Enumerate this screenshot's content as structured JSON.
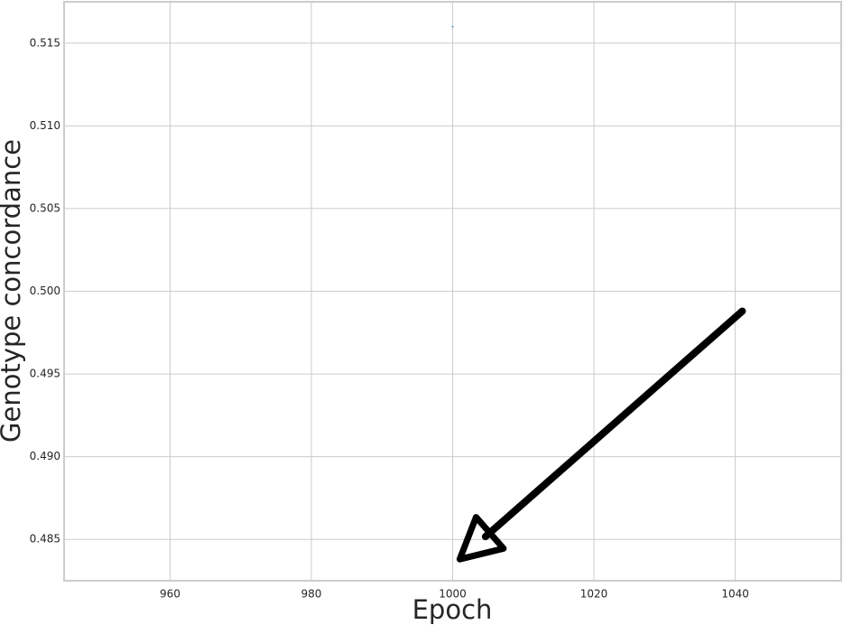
{
  "chart_data": {
    "type": "scatter",
    "title": "",
    "xlabel": "Epoch",
    "ylabel": "Genotype concordance",
    "xlim": [
      945,
      1055
    ],
    "ylim": [
      0.4825,
      0.5175
    ],
    "x_ticks": [
      960,
      980,
      1000,
      1020,
      1040
    ],
    "y_ticks": [
      0.485,
      0.49,
      0.495,
      0.5,
      0.505,
      0.51,
      0.515
    ],
    "y_tick_labels": [
      "0.485",
      "0.490",
      "0.495",
      "0.500",
      "0.505",
      "0.510",
      "0.515"
    ],
    "grid": true,
    "series": [
      {
        "x": [
          1000
        ],
        "y": [
          0.516
        ],
        "color": "#1f77b4"
      }
    ],
    "annotation": {
      "type": "arrow",
      "from": [
        1041,
        0.4988
      ],
      "to": [
        1001,
        0.4838
      ],
      "color": "#000000"
    }
  }
}
